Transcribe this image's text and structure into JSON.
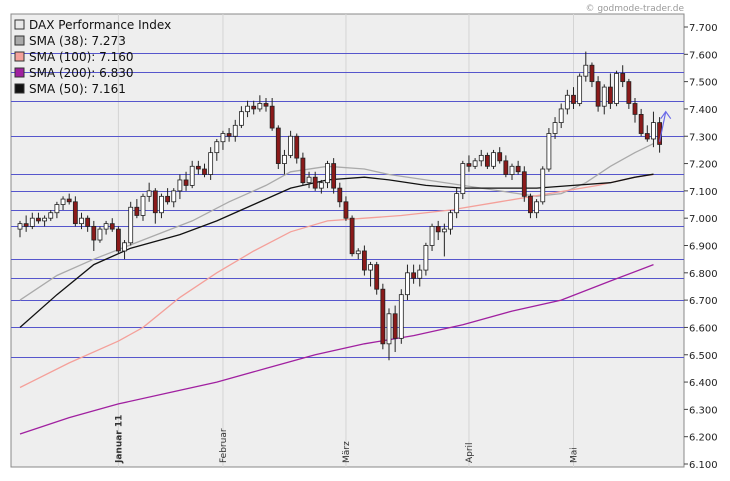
{
  "watermark": "© godmode-trader.de",
  "chart_data": {
    "type": "line",
    "subtype": "candlestick",
    "title": "",
    "ylim": [
      6100,
      7800
    ],
    "y_axis_side": "right",
    "y_ticks": [
      6100,
      6200,
      6300,
      6400,
      6500,
      6600,
      6700,
      6800,
      6900,
      7000,
      7100,
      7200,
      7300,
      7400,
      7500,
      7600,
      7700
    ],
    "y_tick_labels": [
      "6.100",
      "6.200",
      "6.300",
      "6.400",
      "6.500",
      "6.600",
      "6.700",
      "6.800",
      "6.900",
      "7.000",
      "7.100",
      "7.200",
      "7.300",
      "7.400",
      "7.500",
      "7.600",
      "7.700"
    ],
    "horizontal_levels": [
      6490,
      6600,
      6700,
      6780,
      6850,
      6970,
      7030,
      7100,
      7160,
      7300,
      7430,
      7535,
      7605
    ],
    "x_labels": [
      {
        "label": "Januar 11",
        "index": 16,
        "bold": true
      },
      {
        "label": "Februar",
        "index": 33,
        "bold": false
      },
      {
        "label": "März",
        "index": 53,
        "bold": false
      },
      {
        "label": "April",
        "index": 73,
        "bold": false
      },
      {
        "label": "Mai",
        "index": 90,
        "bold": false
      }
    ],
    "legend": [
      {
        "label": "DAX Performance Index",
        "color": "#e8e8e8"
      },
      {
        "label": "SMA (38): 7.273",
        "color": "#aaaaaa"
      },
      {
        "label": "SMA (100): 7.160",
        "color": "#f4a09a"
      },
      {
        "label": "SMA (200): 6.830",
        "color": "#a020a0"
      },
      {
        "label": "SMA (50): 7.161",
        "color": "#111111"
      }
    ],
    "candles": [
      [
        6960,
        6990,
        6930,
        6980
      ],
      [
        6980,
        7010,
        6950,
        6970
      ],
      [
        6970,
        7020,
        6960,
        7000
      ],
      [
        7000,
        7020,
        6980,
        6990
      ],
      [
        6990,
        7010,
        6970,
        7000
      ],
      [
        7000,
        7030,
        6990,
        7020
      ],
      [
        7020,
        7060,
        7000,
        7050
      ],
      [
        7050,
        7080,
        7030,
        7070
      ],
      [
        7070,
        7090,
        7050,
        7060
      ],
      [
        7060,
        7080,
        6970,
        6980
      ],
      [
        6980,
        7020,
        6960,
        7000
      ],
      [
        7000,
        7010,
        6950,
        6970
      ],
      [
        6970,
        6990,
        6880,
        6920
      ],
      [
        6920,
        6970,
        6910,
        6960
      ],
      [
        6960,
        6990,
        6940,
        6980
      ],
      [
        6980,
        7000,
        6950,
        6960
      ],
      [
        6960,
        6970,
        6870,
        6880
      ],
      [
        6880,
        6920,
        6850,
        6910
      ],
      [
        6910,
        7060,
        6900,
        7040
      ],
      [
        7040,
        7070,
        7000,
        7010
      ],
      [
        7010,
        7090,
        6990,
        7080
      ],
      [
        7080,
        7130,
        7060,
        7100
      ],
      [
        7100,
        7110,
        6980,
        7020
      ],
      [
        7020,
        7090,
        7000,
        7080
      ],
      [
        7080,
        7110,
        7050,
        7060
      ],
      [
        7060,
        7110,
        7040,
        7100
      ],
      [
        7100,
        7160,
        7070,
        7140
      ],
      [
        7140,
        7170,
        7100,
        7120
      ],
      [
        7120,
        7210,
        7110,
        7190
      ],
      [
        7190,
        7210,
        7160,
        7180
      ],
      [
        7180,
        7200,
        7150,
        7160
      ],
      [
        7160,
        7260,
        7140,
        7240
      ],
      [
        7240,
        7290,
        7210,
        7280
      ],
      [
        7280,
        7320,
        7250,
        7310
      ],
      [
        7310,
        7330,
        7280,
        7300
      ],
      [
        7300,
        7360,
        7280,
        7340
      ],
      [
        7340,
        7410,
        7330,
        7390
      ],
      [
        7390,
        7430,
        7370,
        7410
      ],
      [
        7410,
        7430,
        7380,
        7400
      ],
      [
        7400,
        7450,
        7390,
        7420
      ],
      [
        7420,
        7440,
        7390,
        7410
      ],
      [
        7410,
        7440,
        7320,
        7330
      ],
      [
        7330,
        7340,
        7180,
        7200
      ],
      [
        7200,
        7250,
        7160,
        7230
      ],
      [
        7230,
        7320,
        7220,
        7300
      ],
      [
        7300,
        7310,
        7200,
        7220
      ],
      [
        7220,
        7240,
        7120,
        7130
      ],
      [
        7130,
        7170,
        7110,
        7150
      ],
      [
        7150,
        7170,
        7100,
        7110
      ],
      [
        7110,
        7140,
        7090,
        7130
      ],
      [
        7130,
        7210,
        7110,
        7200
      ],
      [
        7200,
        7220,
        7090,
        7110
      ],
      [
        7110,
        7130,
        7040,
        7060
      ],
      [
        7060,
        7080,
        6990,
        7000
      ],
      [
        7000,
        7010,
        6860,
        6870
      ],
      [
        6870,
        6890,
        6850,
        6880
      ],
      [
        6880,
        6900,
        6790,
        6810
      ],
      [
        6810,
        6840,
        6750,
        6830
      ],
      [
        6830,
        6840,
        6720,
        6740
      ],
      [
        6740,
        6760,
        6520,
        6540
      ],
      [
        6540,
        6670,
        6480,
        6650
      ],
      [
        6650,
        6680,
        6510,
        6560
      ],
      [
        6560,
        6740,
        6540,
        6720
      ],
      [
        6720,
        6830,
        6700,
        6800
      ],
      [
        6800,
        6830,
        6760,
        6780
      ],
      [
        6780,
        6830,
        6750,
        6810
      ],
      [
        6810,
        6910,
        6790,
        6900
      ],
      [
        6900,
        6980,
        6880,
        6970
      ],
      [
        6970,
        6990,
        6920,
        6950
      ],
      [
        6950,
        6980,
        6860,
        6960
      ],
      [
        6960,
        7030,
        6940,
        7020
      ],
      [
        7020,
        7110,
        7000,
        7090
      ],
      [
        7090,
        7210,
        7070,
        7200
      ],
      [
        7200,
        7230,
        7170,
        7190
      ],
      [
        7190,
        7220,
        7180,
        7210
      ],
      [
        7210,
        7250,
        7190,
        7230
      ],
      [
        7230,
        7240,
        7180,
        7190
      ],
      [
        7190,
        7250,
        7180,
        7240
      ],
      [
        7240,
        7260,
        7200,
        7210
      ],
      [
        7210,
        7230,
        7150,
        7160
      ],
      [
        7160,
        7200,
        7140,
        7190
      ],
      [
        7190,
        7210,
        7160,
        7170
      ],
      [
        7170,
        7190,
        7060,
        7080
      ],
      [
        7080,
        7090,
        7000,
        7020
      ],
      [
        7020,
        7070,
        7000,
        7060
      ],
      [
        7060,
        7190,
        7050,
        7180
      ],
      [
        7180,
        7330,
        7170,
        7310
      ],
      [
        7310,
        7370,
        7290,
        7350
      ],
      [
        7350,
        7420,
        7330,
        7400
      ],
      [
        7400,
        7470,
        7380,
        7450
      ],
      [
        7450,
        7480,
        7400,
        7420
      ],
      [
        7420,
        7530,
        7410,
        7520
      ],
      [
        7520,
        7610,
        7500,
        7560
      ],
      [
        7560,
        7570,
        7480,
        7500
      ],
      [
        7500,
        7520,
        7390,
        7410
      ],
      [
        7410,
        7490,
        7380,
        7480
      ],
      [
        7480,
        7530,
        7400,
        7420
      ],
      [
        7420,
        7540,
        7410,
        7530
      ],
      [
        7530,
        7560,
        7480,
        7500
      ],
      [
        7500,
        7510,
        7400,
        7420
      ],
      [
        7420,
        7440,
        7350,
        7380
      ],
      [
        7380,
        7400,
        7300,
        7310
      ],
      [
        7310,
        7340,
        7280,
        7290
      ],
      [
        7290,
        7390,
        7260,
        7350
      ],
      [
        7350,
        7370,
        7240,
        7270
      ]
    ],
    "series": [
      {
        "name": "SMA (38): 7.273",
        "color": "#aaaaaa",
        "points": [
          [
            0,
            6700
          ],
          [
            6,
            6790
          ],
          [
            12,
            6850
          ],
          [
            20,
            6920
          ],
          [
            28,
            6990
          ],
          [
            34,
            7060
          ],
          [
            40,
            7120
          ],
          [
            44,
            7170
          ],
          [
            50,
            7190
          ],
          [
            56,
            7180
          ],
          [
            60,
            7160
          ],
          [
            66,
            7140
          ],
          [
            72,
            7120
          ],
          [
            78,
            7100
          ],
          [
            84,
            7080
          ],
          [
            88,
            7090
          ],
          [
            92,
            7130
          ],
          [
            96,
            7190
          ],
          [
            100,
            7240
          ],
          [
            103,
            7273
          ]
        ]
      },
      {
        "name": "SMA (100): 7.160",
        "color": "#f4a09a",
        "points": [
          [
            0,
            6380
          ],
          [
            8,
            6470
          ],
          [
            16,
            6550
          ],
          [
            20,
            6600
          ],
          [
            26,
            6710
          ],
          [
            32,
            6800
          ],
          [
            38,
            6880
          ],
          [
            44,
            6950
          ],
          [
            50,
            6990
          ],
          [
            56,
            7000
          ],
          [
            62,
            7010
          ],
          [
            70,
            7030
          ],
          [
            78,
            7060
          ],
          [
            86,
            7090
          ],
          [
            94,
            7120
          ],
          [
            100,
            7150
          ],
          [
            103,
            7160
          ]
        ]
      },
      {
        "name": "SMA (200): 6.830",
        "color": "#a020a0",
        "points": [
          [
            0,
            6210
          ],
          [
            8,
            6270
          ],
          [
            16,
            6320
          ],
          [
            24,
            6360
          ],
          [
            32,
            6400
          ],
          [
            40,
            6450
          ],
          [
            48,
            6500
          ],
          [
            56,
            6540
          ],
          [
            64,
            6570
          ],
          [
            72,
            6610
          ],
          [
            80,
            6660
          ],
          [
            88,
            6700
          ],
          [
            96,
            6770
          ],
          [
            103,
            6830
          ]
        ]
      },
      {
        "name": "SMA (50): 7.161",
        "color": "#111111",
        "points": [
          [
            0,
            6600
          ],
          [
            6,
            6720
          ],
          [
            12,
            6830
          ],
          [
            18,
            6890
          ],
          [
            26,
            6940
          ],
          [
            32,
            6990
          ],
          [
            38,
            7050
          ],
          [
            44,
            7110
          ],
          [
            50,
            7140
          ],
          [
            56,
            7150
          ],
          [
            60,
            7140
          ],
          [
            66,
            7120
          ],
          [
            72,
            7110
          ],
          [
            78,
            7110
          ],
          [
            84,
            7110
          ],
          [
            90,
            7120
          ],
          [
            96,
            7130
          ],
          [
            100,
            7150
          ],
          [
            103,
            7161
          ]
        ]
      }
    ],
    "projection_arrow": {
      "from": [
        104,
        7280
      ],
      "to": [
        105,
        7390
      ],
      "color": "#6a6ae8"
    }
  }
}
